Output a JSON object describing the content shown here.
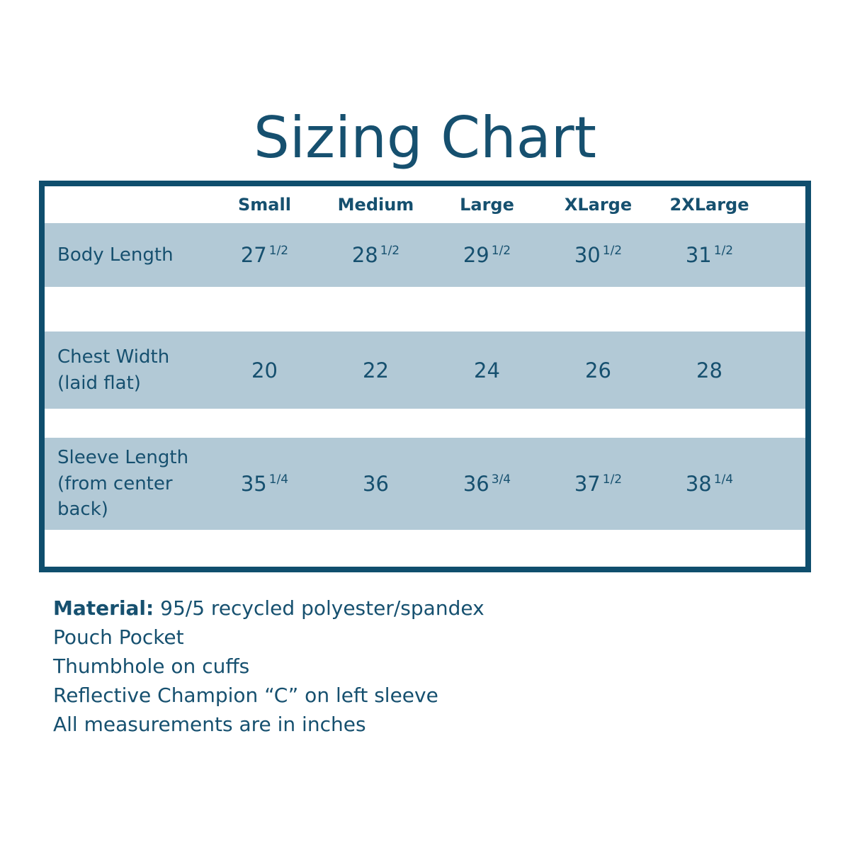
{
  "title": "Sizing Chart",
  "table": {
    "columns": [
      "Small",
      "Medium",
      "Large",
      "XLarge",
      "2XLarge"
    ],
    "rows": [
      {
        "label": "Body Length",
        "values": [
          {
            "whole": "27",
            "frac": "1/2"
          },
          {
            "whole": "28",
            "frac": "1/2"
          },
          {
            "whole": "29",
            "frac": "1/2"
          },
          {
            "whole": "30",
            "frac": "1/2"
          },
          {
            "whole": "31",
            "frac": "1/2"
          }
        ]
      },
      {
        "label": "Chest Width (laid flat)",
        "values": [
          {
            "whole": "20",
            "frac": ""
          },
          {
            "whole": "22",
            "frac": ""
          },
          {
            "whole": "24",
            "frac": ""
          },
          {
            "whole": "26",
            "frac": ""
          },
          {
            "whole": "28",
            "frac": ""
          }
        ]
      },
      {
        "label": "Sleeve Length (from center back)",
        "values": [
          {
            "whole": "35",
            "frac": "1/4"
          },
          {
            "whole": "36",
            "frac": ""
          },
          {
            "whole": "36",
            "frac": "3/4"
          },
          {
            "whole": "37",
            "frac": "1/2"
          },
          {
            "whole": "38",
            "frac": "1/4"
          }
        ]
      }
    ]
  },
  "notes": {
    "material_label": "Material:",
    "material_value": "95/5 recycled polyester/spandex",
    "lines": [
      "Pouch Pocket",
      "Thumbhole on cuffs",
      "Reflective Champion “C” on left sleeve",
      "All measurements are in inches"
    ]
  },
  "colors": {
    "ink": "#16506f",
    "border": "#0f4e6d",
    "row_bg": "#b2c9d6",
    "bg": "#ffffff"
  },
  "chart_data": {
    "type": "table",
    "title": "Sizing Chart",
    "columns": [
      "Small",
      "Medium",
      "Large",
      "XLarge",
      "2XLarge"
    ],
    "rows": [
      {
        "label": "Body Length",
        "values": [
          "27 1/2",
          "28 1/2",
          "29 1/2",
          "30 1/2",
          "31 1/2"
        ]
      },
      {
        "label": "Chest Width (laid flat)",
        "values": [
          "20",
          "22",
          "24",
          "26",
          "28"
        ]
      },
      {
        "label": "Sleeve Length (from center back)",
        "values": [
          "35 1/4",
          "36",
          "36 3/4",
          "37 1/2",
          "38 1/4"
        ]
      }
    ],
    "units": "inches",
    "notes": [
      "Material: 95/5 recycled polyester/spandex",
      "Pouch Pocket",
      "Thumbhole on cuffs",
      "Reflective Champion “C” on left sleeve",
      "All measurements are in inches"
    ]
  }
}
